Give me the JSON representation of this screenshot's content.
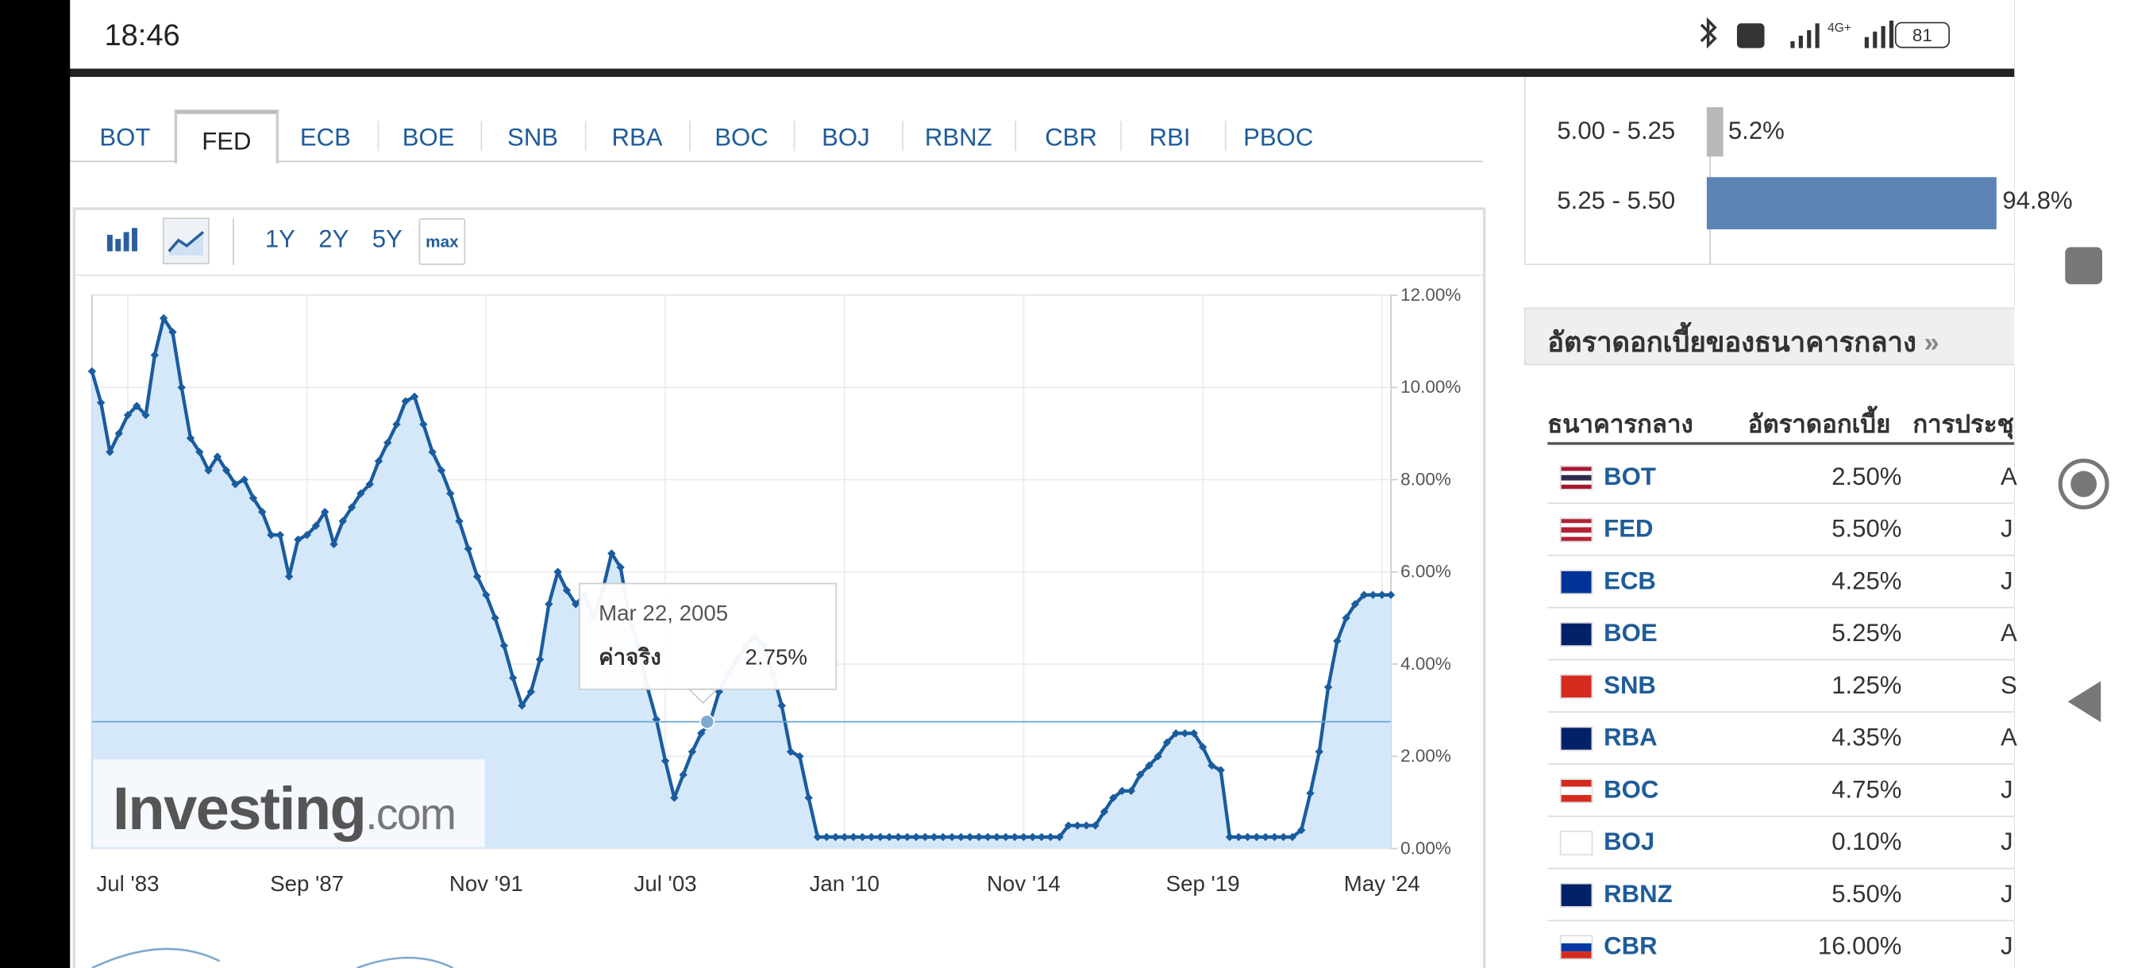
{
  "status_bar": {
    "time": "18:46",
    "battery": "81"
  },
  "tabs": {
    "items": [
      "BOT",
      "FED",
      "ECB",
      "BOE",
      "SNB",
      "RBA",
      "BOC",
      "BOJ",
      "RBNZ",
      "CBR",
      "RBI",
      "PBOC"
    ],
    "active": "FED"
  },
  "range_buttons": [
    "1Y",
    "2Y",
    "5Y",
    "max"
  ],
  "chart_data": {
    "type": "area",
    "color": "#1a5c9e",
    "fill": "#d5e8fa",
    "categories": [
      null,
      null,
      null,
      null,
      "Jul '83",
      null,
      null,
      null,
      null,
      null,
      null,
      null,
      null,
      null,
      null,
      null,
      null,
      null,
      null,
      null,
      null,
      null,
      null,
      null,
      "Sep '87",
      null,
      null,
      null,
      null,
      null,
      null,
      null,
      null,
      null,
      null,
      null,
      null,
      null,
      null,
      null,
      null,
      null,
      null,
      null,
      "Nov '91",
      null,
      null,
      null,
      null,
      null,
      null,
      null,
      null,
      null,
      null,
      null,
      null,
      null,
      null,
      null,
      null,
      null,
      null,
      null,
      "Jul '03",
      null,
      null,
      null,
      null,
      null,
      null,
      null,
      null,
      null,
      null,
      null,
      null,
      null,
      null,
      null,
      null,
      null,
      null,
      null,
      "Jan '10",
      null,
      null,
      null,
      null,
      null,
      null,
      null,
      null,
      null,
      null,
      null,
      null,
      null,
      null,
      null,
      null,
      null,
      null,
      null,
      "Nov '14",
      null,
      null,
      null,
      null,
      null,
      null,
      null,
      null,
      null,
      null,
      null,
      null,
      null,
      null,
      null,
      null,
      null,
      null,
      null,
      "Sep '19",
      null,
      null,
      null,
      null,
      null,
      null,
      null,
      null,
      null,
      null,
      null,
      null,
      null,
      null,
      null,
      null,
      null,
      null,
      null,
      "May '24",
      null
    ],
    "values": [
      10.35,
      9.67,
      8.6,
      9.0,
      9.4,
      9.6,
      9.4,
      10.7,
      11.5,
      11.2,
      10.0,
      8.9,
      8.6,
      8.2,
      8.5,
      8.2,
      7.9,
      8.0,
      7.6,
      7.3,
      6.8,
      6.8,
      5.9,
      6.7,
      6.8,
      7.0,
      7.3,
      6.6,
      7.1,
      7.4,
      7.7,
      7.9,
      8.4,
      8.8,
      9.2,
      9.7,
      9.8,
      9.2,
      8.6,
      8.2,
      7.7,
      7.1,
      6.5,
      5.9,
      5.5,
      5.0,
      4.4,
      3.7,
      3.1,
      3.4,
      4.1,
      5.3,
      6.0,
      5.6,
      5.3,
      5.5,
      5.0,
      5.6,
      6.4,
      6.1,
      5.0,
      4.4,
      3.5,
      2.8,
      1.9,
      1.1,
      1.6,
      2.1,
      2.5,
      2.75,
      3.4,
      3.8,
      4.1,
      4.4,
      4.6,
      4.4,
      3.8,
      3.1,
      2.1,
      2.0,
      1.1,
      0.25,
      0.25,
      0.25,
      0.25,
      0.25,
      0.25,
      0.25,
      0.25,
      0.25,
      0.25,
      0.25,
      0.25,
      0.25,
      0.25,
      0.25,
      0.25,
      0.25,
      0.25,
      0.25,
      0.25,
      0.25,
      0.25,
      0.25,
      0.25,
      0.25,
      0.25,
      0.25,
      0.25,
      0.5,
      0.5,
      0.5,
      0.5,
      0.8,
      1.1,
      1.25,
      1.25,
      1.6,
      1.8,
      2.0,
      2.3,
      2.5,
      2.5,
      2.5,
      2.2,
      1.8,
      1.7,
      0.25,
      0.25,
      0.25,
      0.25,
      0.25,
      0.25,
      0.25,
      0.25,
      0.4,
      1.2,
      2.1,
      3.5,
      4.5,
      5.0,
      5.3,
      5.5,
      5.5,
      5.5,
      5.5
    ],
    "ylim": [
      0,
      12
    ],
    "yticks": [
      {
        "value": 0,
        "label": "0.00%"
      },
      {
        "value": 2,
        "label": "2.00%"
      },
      {
        "value": 4,
        "label": "4.00%"
      },
      {
        "value": 6,
        "label": "6.00%"
      },
      {
        "value": 8,
        "label": "8.00%"
      },
      {
        "value": 10,
        "label": "10.00%"
      },
      {
        "value": 12,
        "label": "12.00%"
      }
    ],
    "grid": true,
    "tooltip": {
      "date": "Mar 22, 2005",
      "label": "ค่าจริง",
      "value": 2.75,
      "value_label": "2.75%"
    },
    "watermark": {
      "brand": "Investing",
      "suffix": ".com"
    }
  },
  "distribution": {
    "color": "#5b84b5",
    "rows": [
      {
        "range": "5.00 - 5.25",
        "value": 5.2,
        "value_label": "5.2%",
        "color": "#b8b8b8"
      },
      {
        "range": "5.25 - 5.50",
        "value": 94.8,
        "value_label": "94.8%",
        "color": "#5b84b5"
      }
    ]
  },
  "rates_panel": {
    "title": "อัตราดอกเบี้ยของธนาคารกลาง",
    "more": "»",
    "columns": [
      "ธนาคารกลาง",
      "อัตราดอกเบี้ย",
      "การประชุม"
    ],
    "rows": [
      {
        "bank": "BOT",
        "rate": "2.50%",
        "next": "A"
      },
      {
        "bank": "FED",
        "rate": "5.50%",
        "next": "J"
      },
      {
        "bank": "ECB",
        "rate": "4.25%",
        "next": "J"
      },
      {
        "bank": "BOE",
        "rate": "5.25%",
        "next": "A"
      },
      {
        "bank": "SNB",
        "rate": "1.25%",
        "next": "S"
      },
      {
        "bank": "RBA",
        "rate": "4.35%",
        "next": "A"
      },
      {
        "bank": "BOC",
        "rate": "4.75%",
        "next": "J"
      },
      {
        "bank": "BOJ",
        "rate": "0.10%",
        "next": "J"
      },
      {
        "bank": "RBNZ",
        "rate": "5.50%",
        "next": "J"
      },
      {
        "bank": "CBR",
        "rate": "16.00%",
        "next": "J"
      }
    ]
  }
}
